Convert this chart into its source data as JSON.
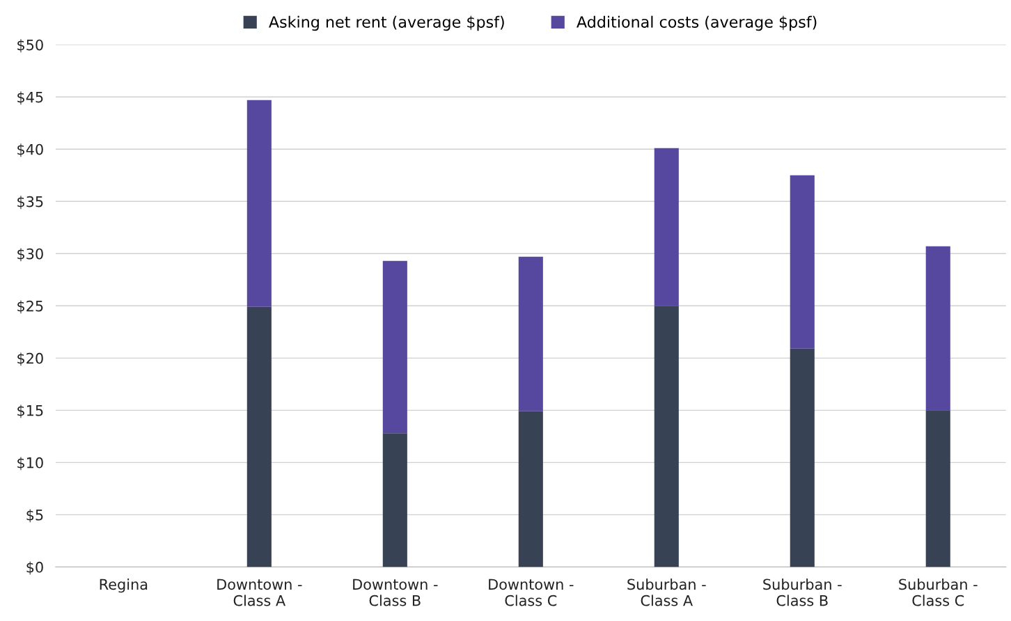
{
  "chart_data": {
    "type": "bar",
    "stacked": true,
    "categories": [
      "Regina",
      "Downtown -\nClass A",
      "Downtown -\nClass B",
      "Downtown -\nClass C",
      "Suburban -\nClass A",
      "Suburban -\nClass B",
      "Suburban -\nClass C"
    ],
    "series": [
      {
        "name": "Asking net rent (average $psf)",
        "color": "#374254",
        "values": [
          null,
          24.9,
          12.8,
          14.9,
          25.0,
          20.9,
          15.0
        ]
      },
      {
        "name": "Additional costs (average $psf)",
        "color": "#56489e",
        "values": [
          null,
          19.8,
          16.5,
          14.8,
          15.1,
          16.6,
          15.7
        ]
      }
    ],
    "ylim": [
      0,
      50
    ],
    "yticks": [
      {
        "value": 0,
        "label": "$0"
      },
      {
        "value": 5,
        "label": "$5"
      },
      {
        "value": 10,
        "label": "$10"
      },
      {
        "value": 15,
        "label": "$15"
      },
      {
        "value": 20,
        "label": "$20"
      },
      {
        "value": 25,
        "label": "$25"
      },
      {
        "value": 30,
        "label": "$30"
      },
      {
        "value": 35,
        "label": "$35"
      },
      {
        "value": 40,
        "label": "$40"
      },
      {
        "value": 45,
        "label": "$45"
      },
      {
        "value": 50,
        "label": "$50"
      }
    ],
    "grid": "y",
    "legend": "top"
  }
}
